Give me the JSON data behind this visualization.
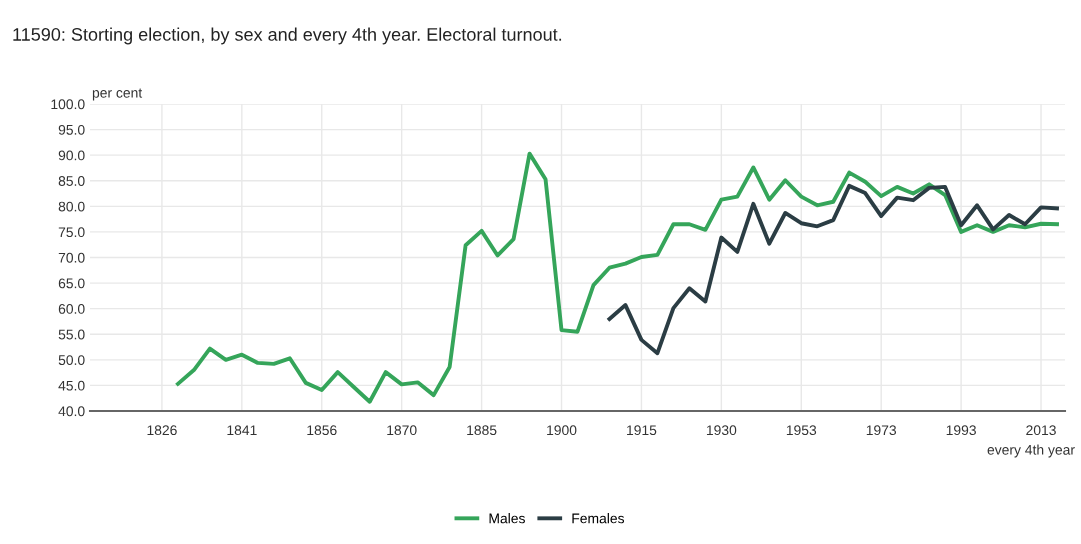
{
  "chart_data": {
    "type": "line",
    "title": "11590: Storting election, by sex and every 4th year. Electoral turnout.",
    "ylabel": "per cent",
    "xlabel": "every 4th year",
    "categories": [
      null,
      null,
      null,
      null,
      "1826",
      null,
      null,
      null,
      null,
      "1841",
      null,
      null,
      null,
      null,
      "1856",
      null,
      null,
      null,
      null,
      "1870",
      null,
      null,
      null,
      null,
      "1885",
      null,
      null,
      null,
      null,
      "1900",
      null,
      null,
      null,
      null,
      "1915",
      null,
      null,
      null,
      null,
      "1930",
      null,
      null,
      null,
      null,
      "1953",
      null,
      null,
      null,
      null,
      "1973",
      null,
      null,
      null,
      null,
      "1993",
      null,
      null,
      null,
      null,
      "2013",
      null
    ],
    "ylim": [
      40,
      100
    ],
    "yticks": [
      {
        "value": 40,
        "label": "40.0"
      },
      {
        "value": 45,
        "label": "45.0"
      },
      {
        "value": 50,
        "label": "50.0"
      },
      {
        "value": 55,
        "label": "55.0"
      },
      {
        "value": 60,
        "label": "60.0"
      },
      {
        "value": 65,
        "label": "65.0"
      },
      {
        "value": 70,
        "label": "70.0"
      },
      {
        "value": 75,
        "label": "75.0"
      },
      {
        "value": 80,
        "label": "80.0"
      },
      {
        "value": 85,
        "label": "85.0"
      },
      {
        "value": 90,
        "label": "90.0"
      },
      {
        "value": 95,
        "label": "95.0"
      },
      {
        "value": 100,
        "label": "100.0"
      }
    ],
    "grid": true,
    "legend": "bottom",
    "marker": "none",
    "line_style": "solid",
    "series": [
      {
        "name": "Males",
        "color": "#35a55a",
        "values": [
          null,
          null,
          null,
          null,
          null,
          45.3,
          48.0,
          52.2,
          50.0,
          51.0,
          49.4,
          49.2,
          50.3,
          45.5,
          44.1,
          47.6,
          44.7,
          41.8,
          47.6,
          45.2,
          45.6,
          43.1,
          48.6,
          72.4,
          75.2,
          70.4,
          73.6,
          90.3,
          85.3,
          55.8,
          55.5,
          64.6,
          68.0,
          68.8,
          70.1,
          70.5,
          76.5,
          76.5,
          75.4,
          81.3,
          81.9,
          87.6,
          81.3,
          85.1,
          81.9,
          80.2,
          80.9,
          86.6,
          84.8,
          82.0,
          83.8,
          82.5,
          84.3,
          82.2,
          75.0,
          76.3,
          75.0,
          76.3,
          75.9,
          76.6,
          76.5
        ]
      },
      {
        "name": "Females",
        "color": "#2b3d44",
        "values": [
          null,
          null,
          null,
          null,
          null,
          null,
          null,
          null,
          null,
          null,
          null,
          null,
          null,
          null,
          null,
          null,
          null,
          null,
          null,
          null,
          null,
          null,
          null,
          null,
          null,
          null,
          null,
          null,
          null,
          null,
          null,
          null,
          58.0,
          60.7,
          53.9,
          51.3,
          60.1,
          64.0,
          61.4,
          73.9,
          71.1,
          80.5,
          72.7,
          78.7,
          76.7,
          76.1,
          77.3,
          84.0,
          82.6,
          78.1,
          81.7,
          81.2,
          83.6,
          83.8,
          76.3,
          80.2,
          75.5,
          78.3,
          76.5,
          79.8,
          79.6
        ]
      }
    ]
  }
}
